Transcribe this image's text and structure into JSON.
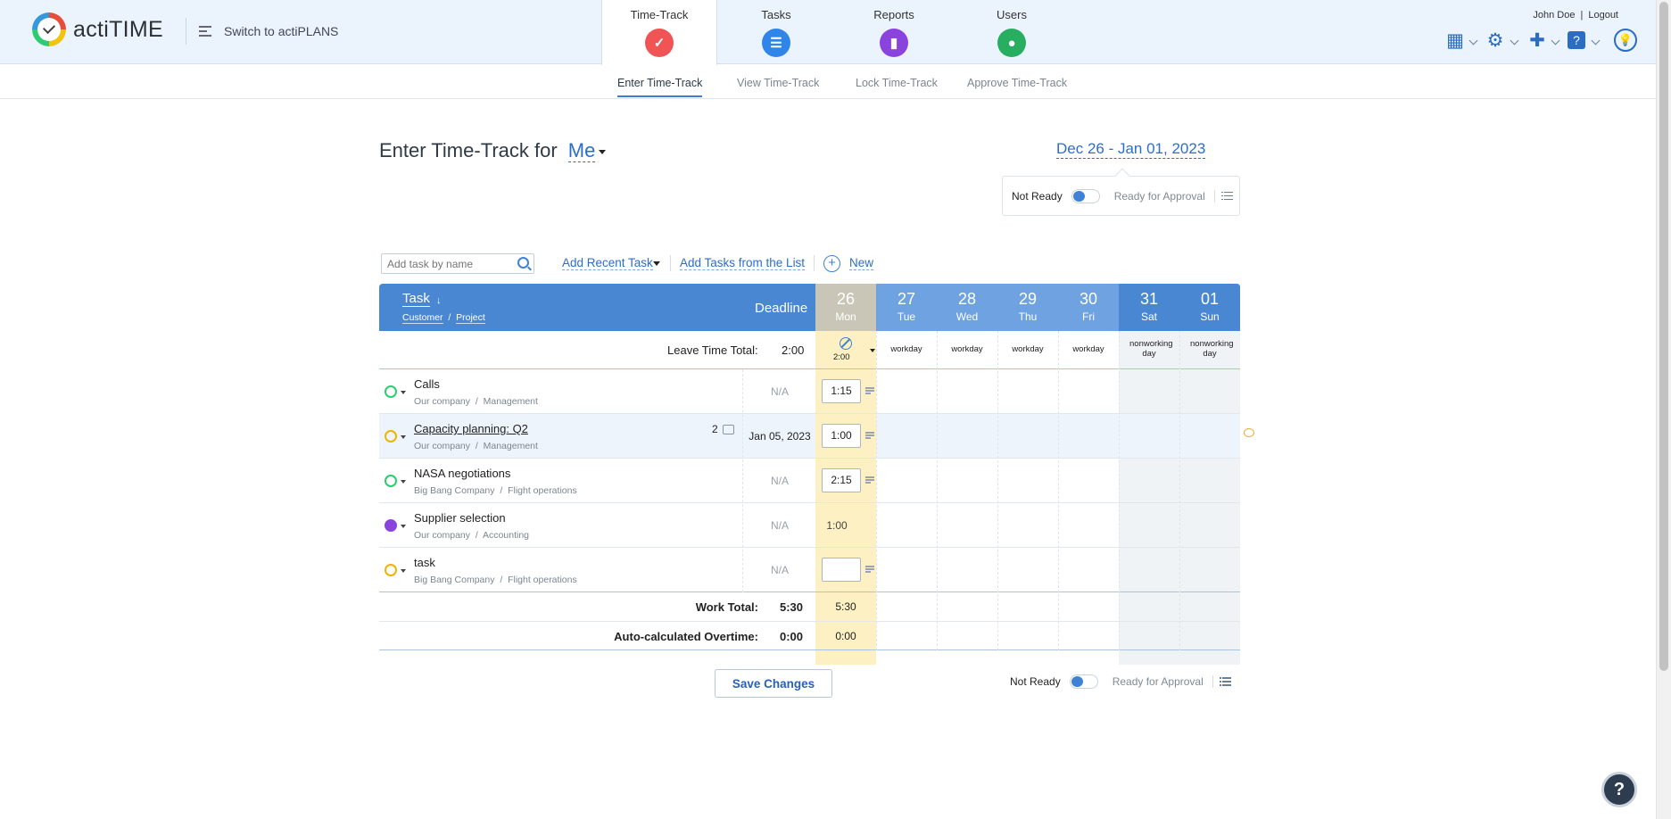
{
  "header": {
    "app_name": "actiTIME",
    "switch_label": "Switch to actiPLANS",
    "tabs": [
      {
        "label": "Time-Track",
        "color": "#f05454",
        "icon": "check-icon"
      },
      {
        "label": "Tasks",
        "color": "#2f86e8",
        "icon": "list-icon"
      },
      {
        "label": "Reports",
        "color": "#8a44dd",
        "icon": "chart-icon"
      },
      {
        "label": "Users",
        "color": "#27ae60",
        "icon": "user-icon"
      }
    ],
    "user_name": "John Doe",
    "logout": "Logout"
  },
  "subnav": [
    "Enter Time-Track",
    "View Time-Track",
    "Lock Time-Track",
    "Approve Time-Track"
  ],
  "page": {
    "title": "Enter Time-Track for",
    "user": "Me",
    "range": "Dec 26 - Jan 01, 2023"
  },
  "status": {
    "not_ready": "Not Ready",
    "ready": "Ready for Approval"
  },
  "toolbar": {
    "search_placeholder": "Add task by name",
    "recent": "Add Recent Task",
    "from_list": "Add Tasks from the List",
    "new": "New"
  },
  "table": {
    "task_header": "Task",
    "sort_arrow": "↓",
    "customer": "Customer",
    "project": "Project",
    "deadline_header": "Deadline",
    "days": [
      {
        "num": "26",
        "name": "Mon",
        "type": ""
      },
      {
        "num": "27",
        "name": "Tue",
        "type": "workday"
      },
      {
        "num": "28",
        "name": "Wed",
        "type": "workday"
      },
      {
        "num": "29",
        "name": "Thu",
        "type": "workday"
      },
      {
        "num": "30",
        "name": "Fri",
        "type": "workday"
      },
      {
        "num": "31",
        "name": "Sat",
        "type": "nonworking day"
      },
      {
        "num": "01",
        "name": "Sun",
        "type": "nonworking day"
      }
    ],
    "leave_label": "Leave Time Total:",
    "leave_total": "2:00",
    "leave_mon": "2:00",
    "tasks": [
      {
        "name": "Calls",
        "customer": "Our company",
        "project": "Management",
        "deadline": "N/A",
        "mon": "1:15",
        "comments": "",
        "status_color": "#2ecc71"
      },
      {
        "name": "Capacity planning: Q2",
        "customer": "Our company",
        "project": "Management",
        "deadline": "Jan 05, 2023",
        "mon": "1:00",
        "comments": "2",
        "status_color": "#f0b400"
      },
      {
        "name": "NASA negotiations",
        "customer": "Big Bang Company",
        "project": "Flight operations",
        "deadline": "N/A",
        "mon": "2:15",
        "comments": "",
        "status_color": "#2ecc71"
      },
      {
        "name": "Supplier selection",
        "customer": "Our company",
        "project": "Accounting",
        "deadline": "N/A",
        "mon": "1:00",
        "comments": "",
        "status_color": "#8a44dd"
      },
      {
        "name": "task",
        "customer": "Big Bang Company",
        "project": "Flight operations",
        "deadline": "N/A",
        "mon": "",
        "comments": "",
        "status_color": "#f0b400"
      }
    ],
    "work_label": "Work Total:",
    "work_total": "5:30",
    "work_mon": "5:30",
    "overtime_label": "Auto-calculated Overtime:",
    "overtime_total": "0:00",
    "overtime_mon": "0:00"
  },
  "save_label": "Save Changes",
  "help": "?"
}
